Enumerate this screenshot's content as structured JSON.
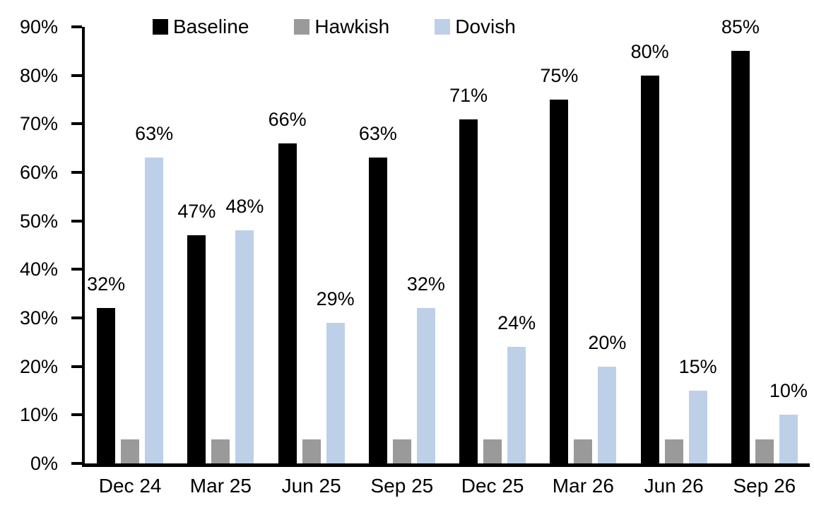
{
  "chart_data": {
    "type": "bar",
    "title": "",
    "categories": [
      "Dec 24",
      "Mar 25",
      "Jun 25",
      "Sep 25",
      "Dec 25",
      "Mar 26",
      "Jun 26",
      "Sep 26"
    ],
    "series": [
      {
        "name": "Baseline",
        "color": "#000000",
        "values": [
          32,
          47,
          66,
          63,
          71,
          75,
          80,
          85
        ],
        "show_labels": true
      },
      {
        "name": "Hawkish",
        "color": "#9a9a9a",
        "values": [
          5,
          5,
          5,
          5,
          5,
          5,
          5,
          5
        ],
        "show_labels": false
      },
      {
        "name": "Dovish",
        "color": "#bdd0e8",
        "values": [
          63,
          48,
          29,
          32,
          24,
          20,
          15,
          10
        ],
        "show_labels": true
      }
    ],
    "label_format": "percent",
    "xlabel": "",
    "ylabel": "",
    "ylim": [
      0,
      90
    ],
    "ytick_step": 10,
    "yticks": [
      "0%",
      "10%",
      "20%",
      "30%",
      "40%",
      "50%",
      "60%",
      "70%",
      "80%",
      "90%"
    ],
    "legend_position": "top",
    "grid": false,
    "axis_color": "#000000",
    "background_color": "#ffffff",
    "text_color": "#000000"
  }
}
